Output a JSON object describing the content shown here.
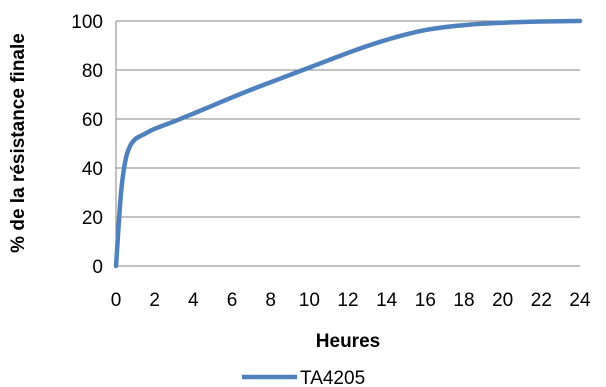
{
  "chart_data": {
    "type": "line",
    "xlabel": "Heures",
    "ylabel": "% de la résistance finale",
    "xlim": [
      0,
      24
    ],
    "ylim": [
      0,
      100
    ],
    "x_ticks": [
      0,
      2,
      4,
      6,
      8,
      10,
      12,
      14,
      16,
      18,
      20,
      22,
      24
    ],
    "y_ticks": [
      0,
      20,
      40,
      60,
      80,
      100
    ],
    "grid": "horizontal",
    "legend_position": "bottom",
    "series": [
      {
        "name": "TA4205",
        "color": "#4f81bd",
        "x": [
          0,
          0.1,
          0.2,
          0.3,
          0.4,
          0.5,
          0.6,
          0.8,
          1.0,
          1.2,
          1.5,
          2,
          3,
          4,
          5,
          6,
          7,
          8,
          9,
          10,
          11,
          12,
          13,
          14,
          15,
          16,
          17,
          18,
          19,
          20,
          21,
          22,
          23,
          24
        ],
        "y": [
          0,
          12,
          24,
          33,
          39,
          43.5,
          46.5,
          50,
          51.8,
          52.8,
          54,
          56,
          59,
          62.2,
          65.5,
          68.8,
          72,
          75,
          78,
          81,
          84,
          87,
          89.8,
          92.3,
          94.5,
          96.3,
          97.5,
          98.3,
          98.9,
          99.3,
          99.6,
          99.8,
          99.9,
          100
        ]
      }
    ]
  }
}
